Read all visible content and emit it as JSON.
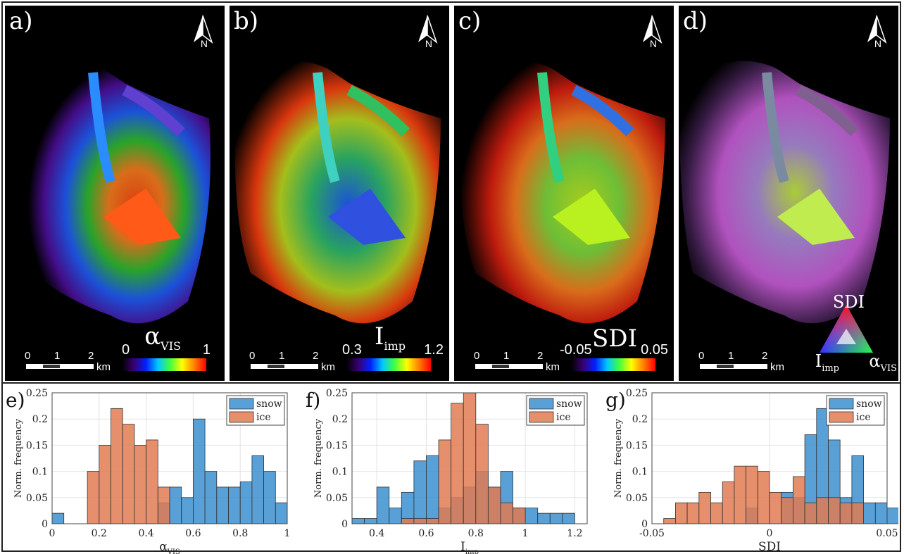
{
  "panels": [
    {
      "label": "a)",
      "cbar_title": "α",
      "cbar_sub": "VIS",
      "tick_lo": "0",
      "tick_hi": "1",
      "colormap": "jet"
    },
    {
      "label": "b)",
      "cbar_title": "I",
      "cbar_sub": "imp",
      "tick_lo": "0.3",
      "tick_hi": "1.2",
      "colormap": "jet"
    },
    {
      "label": "c)",
      "cbar_title": "SDI",
      "cbar_sub": "",
      "tick_lo": "-0.05",
      "tick_hi": "0.05",
      "colormap": "jet"
    },
    {
      "label": "d)",
      "tri_top": "SDI",
      "tri_left": "I",
      "tri_left_sub": "imp",
      "tri_right": "α",
      "tri_right_sub": "VIS"
    }
  ],
  "north_label": "N",
  "scalebar": {
    "ticks": [
      "0",
      "1",
      "2"
    ],
    "unit": "km"
  },
  "colors": {
    "snow": "#3b8fcf",
    "ice": "#e07b52",
    "overlap": "#8f5f55"
  },
  "chart_data": [
    {
      "type": "bar",
      "label": "e)",
      "xlabel": "α",
      "xlabel_sub": "VIS",
      "ylabel": "Norm. frequency",
      "xlim": [
        0,
        1
      ],
      "ylim": [
        0,
        0.25
      ],
      "xticks": [
        "0",
        "0.2",
        "0.4",
        "0.6",
        "0.8",
        "1"
      ],
      "yticks": [
        "0",
        "0.05",
        "0.1",
        "0.15",
        "0.2",
        "0.25"
      ],
      "bin_start": 0,
      "bin_width": 0.05,
      "series": [
        {
          "name": "snow",
          "values": [
            0.02,
            0,
            0,
            0,
            0,
            0,
            0,
            0,
            0,
            0.04,
            0.07,
            0.05,
            0.2,
            0.1,
            0.07,
            0.07,
            0.08,
            0.13,
            0.1,
            0.04
          ]
        },
        {
          "name": "ice",
          "values": [
            0,
            0,
            0,
            0.1,
            0.15,
            0.22,
            0.19,
            0.15,
            0.16,
            0.07,
            0,
            0,
            0,
            0,
            0,
            0,
            0,
            0,
            0,
            0
          ]
        }
      ]
    },
    {
      "type": "bar",
      "label": "f)",
      "xlabel": "I",
      "xlabel_sub": "imp",
      "ylabel": "Norm. frequency",
      "xlim": [
        0.3,
        1.25
      ],
      "ylim": [
        0,
        0.25
      ],
      "xticks": [
        "0.4",
        "0.6",
        "0.8",
        "1",
        "1.2"
      ],
      "yticks": [
        "0",
        "0.05",
        "0.1",
        "0.15",
        "0.2",
        "0.25"
      ],
      "bin_start": 0.3,
      "bin_width": 0.05,
      "series": [
        {
          "name": "snow",
          "values": [
            0.01,
            0.01,
            0.07,
            0.03,
            0.06,
            0.12,
            0.13,
            0.03,
            0.05,
            0.07,
            0.1,
            0.07,
            0.1,
            0.03,
            0.03,
            0.02,
            0.02,
            0.02
          ]
        },
        {
          "name": "ice",
          "values": [
            0,
            0,
            0,
            0,
            0.01,
            0.01,
            0.01,
            0.16,
            0.23,
            0.25,
            0.19,
            0.07,
            0.04,
            0.03,
            0,
            0,
            0,
            0
          ]
        }
      ]
    },
    {
      "type": "bar",
      "label": "g)",
      "xlabel": "SDI",
      "xlabel_sub": "",
      "ylabel": "Norm. frequency",
      "xlim": [
        -0.05,
        0.05
      ],
      "ylim": [
        0,
        0.25
      ],
      "xticks": [
        "-0.05",
        "0",
        "0.05"
      ],
      "yticks": [
        "0",
        "0.05",
        "0.1",
        "0.15",
        "0.2",
        "0.25"
      ],
      "bin_start": -0.045,
      "bin_width": 0.005,
      "series": [
        {
          "name": "snow",
          "values": [
            0,
            0,
            0,
            0,
            0,
            0,
            0,
            0.03,
            0,
            0,
            0.06,
            0.05,
            0.17,
            0.22,
            0.16,
            0.05,
            0.13,
            0.04,
            0.04,
            0.03
          ]
        },
        {
          "name": "ice",
          "values": [
            0.01,
            0.04,
            0.04,
            0.06,
            0.04,
            0.08,
            0.11,
            0.11,
            0.1,
            0.06,
            0.05,
            0.09,
            0.04,
            0.05,
            0.05,
            0.04,
            0.04,
            0,
            0,
            0
          ]
        }
      ]
    }
  ]
}
